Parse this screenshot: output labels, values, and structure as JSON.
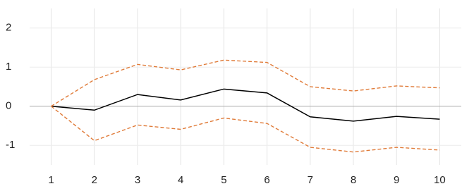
{
  "chart_data": {
    "type": "line",
    "x": [
      1,
      2,
      3,
      4,
      5,
      6,
      7,
      8,
      9,
      10
    ],
    "series": [
      {
        "color": "#000000",
        "dashed": false,
        "values": [
          0,
          -0.1,
          0.3,
          0.16,
          0.44,
          0.34,
          -0.27,
          -0.38,
          -0.26,
          -0.33
        ]
      },
      {
        "color": "#e07b39",
        "dashed": true,
        "values": [
          0,
          0.68,
          1.07,
          0.93,
          1.18,
          1.12,
          0.5,
          0.39,
          0.52,
          0.47
        ]
      },
      {
        "color": "#e07b39",
        "dashed": true,
        "values": [
          0,
          -0.88,
          -0.48,
          -0.59,
          -0.3,
          -0.44,
          -1.05,
          -1.17,
          -1.05,
          -1.12
        ]
      }
    ],
    "xlim": [
      0.5,
      10.5
    ],
    "xticks": [
      1,
      2,
      3,
      4,
      5,
      6,
      7,
      8,
      9,
      10
    ],
    "ylim": [
      -1.5,
      2.5
    ],
    "yticks": [
      -1,
      0,
      1,
      2
    ],
    "grid": true
  }
}
